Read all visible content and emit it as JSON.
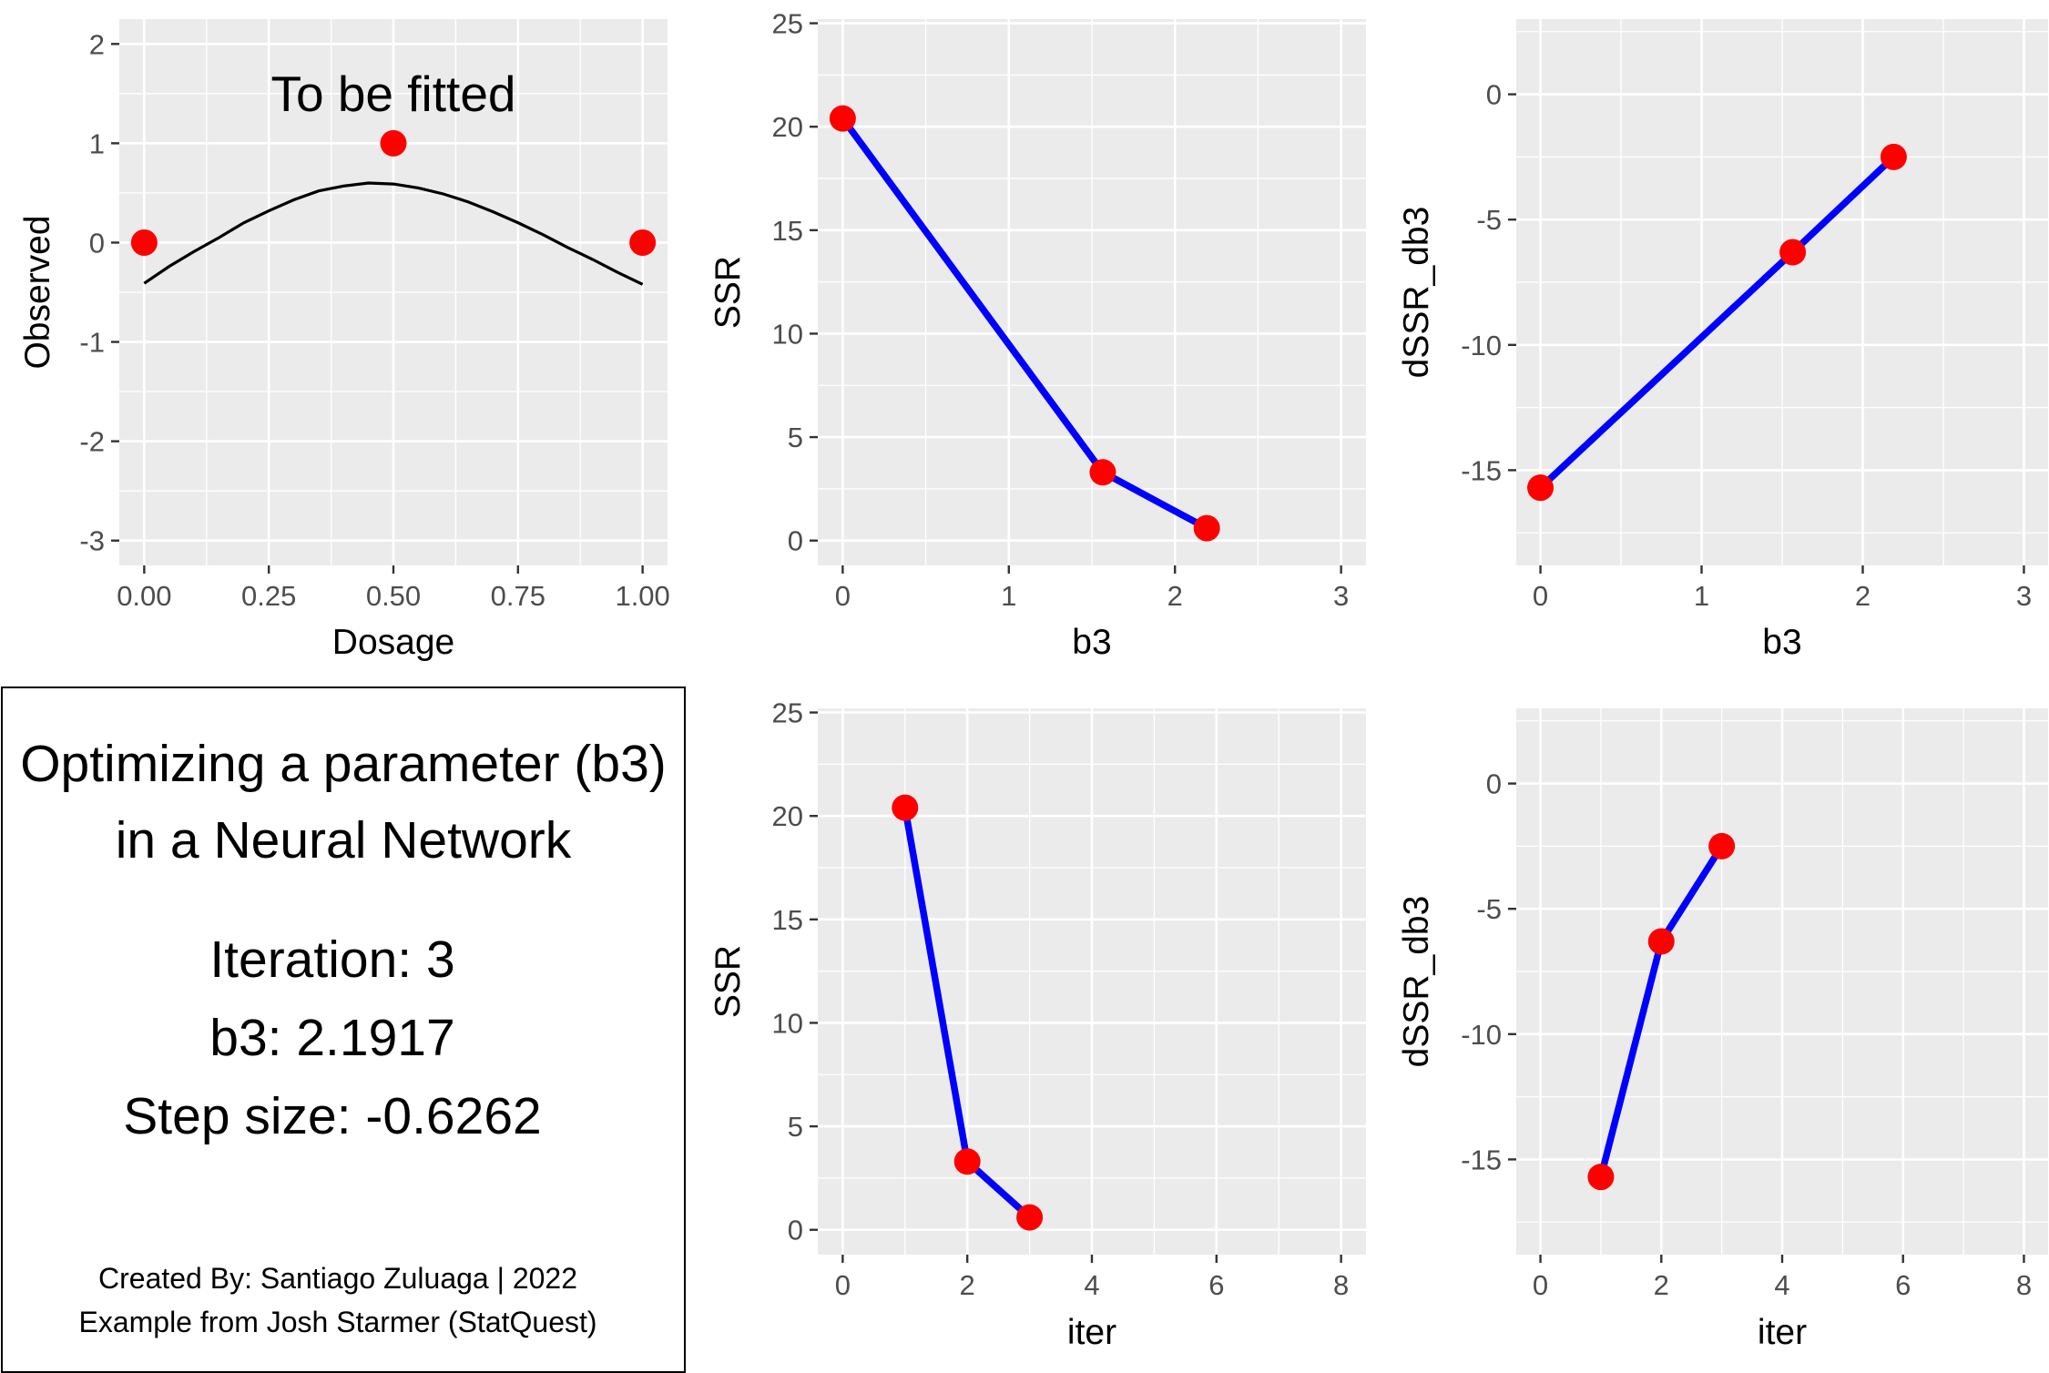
{
  "chart_data": [
    {
      "type": "scatter",
      "xlabel": "Dosage",
      "ylabel": "Observed",
      "xlim": [
        -0.05,
        1.05
      ],
      "ylim": [
        -3.25,
        2.25
      ],
      "xticks": [
        0.0,
        0.25,
        0.5,
        0.75,
        1.0
      ],
      "xtick_labels": [
        "0.00",
        "0.25",
        "0.50",
        "0.75",
        "1.00"
      ],
      "yticks": [
        -3,
        -2,
        -1,
        0,
        1,
        2
      ],
      "ytick_labels": [
        "-3",
        "-2",
        "-1",
        "0",
        "1",
        "2"
      ],
      "grid": true,
      "annotation": {
        "text": "To be fitted",
        "x": 0.5,
        "y": 1.5
      },
      "points": {
        "x": [
          0.0,
          0.5,
          1.0
        ],
        "y": [
          0,
          1,
          0
        ],
        "color": "#ff0000"
      },
      "curve": {
        "x": [
          0.0,
          0.05,
          0.1,
          0.15,
          0.2,
          0.25,
          0.3,
          0.35,
          0.4,
          0.45,
          0.5,
          0.55,
          0.6,
          0.65,
          0.7,
          0.75,
          0.8,
          0.85,
          0.9,
          0.95,
          1.0
        ],
        "y": [
          -0.41,
          -0.24,
          -0.09,
          0.05,
          0.2,
          0.32,
          0.43,
          0.52,
          0.57,
          0.6,
          0.59,
          0.55,
          0.49,
          0.41,
          0.31,
          0.2,
          0.08,
          -0.05,
          -0.17,
          -0.3,
          -0.42
        ],
        "color": "#000000"
      }
    },
    {
      "type": "line",
      "xlabel": "b3",
      "ylabel": "SSR",
      "xlim": [
        -0.15,
        3.15
      ],
      "ylim": [
        -1.2,
        25.2
      ],
      "xticks": [
        0,
        1,
        2,
        3
      ],
      "xtick_labels": [
        "0",
        "1",
        "2",
        "3"
      ],
      "yticks": [
        0,
        5,
        10,
        15,
        20,
        25
      ],
      "ytick_labels": [
        "0",
        "5",
        "10",
        "15",
        "20",
        "25"
      ],
      "grid": true,
      "x": [
        0,
        1.5655,
        2.1917
      ],
      "y": [
        20.4,
        3.3,
        0.6
      ],
      "line_color": "#0000ff",
      "point_color": "#ff0000"
    },
    {
      "type": "line",
      "xlabel": "b3",
      "ylabel": "dSSR_db3",
      "xlim": [
        -0.15,
        3.15
      ],
      "ylim": [
        -18.8,
        3.0
      ],
      "xticks": [
        0,
        1,
        2,
        3
      ],
      "xtick_labels": [
        "0",
        "1",
        "2",
        "3"
      ],
      "yticks": [
        -15,
        -10,
        -5,
        0
      ],
      "ytick_labels": [
        "-15",
        "-10",
        "-5",
        "0"
      ],
      "grid": true,
      "x": [
        0,
        1.5655,
        2.1917
      ],
      "y": [
        -15.7,
        -6.3,
        -2.5
      ],
      "line_color": "#0000ff",
      "point_color": "#ff0000"
    },
    {
      "type": "line",
      "xlabel": "iter",
      "ylabel": "SSR",
      "xlim": [
        -0.4,
        8.4
      ],
      "ylim": [
        -1.2,
        25.2
      ],
      "xticks": [
        0,
        2,
        4,
        6,
        8
      ],
      "xtick_labels": [
        "0",
        "2",
        "4",
        "6",
        "8"
      ],
      "yticks": [
        0,
        5,
        10,
        15,
        20,
        25
      ],
      "ytick_labels": [
        "0",
        "5",
        "10",
        "15",
        "20",
        "25"
      ],
      "grid": true,
      "x": [
        1,
        2,
        3
      ],
      "y": [
        20.4,
        3.3,
        0.6
      ],
      "line_color": "#0000ff",
      "point_color": "#ff0000"
    },
    {
      "type": "line",
      "xlabel": "iter",
      "ylabel": "dSSR_db3",
      "xlim": [
        -0.4,
        8.4
      ],
      "ylim": [
        -18.8,
        3.0
      ],
      "xticks": [
        0,
        2,
        4,
        6,
        8
      ],
      "xtick_labels": [
        "0",
        "2",
        "4",
        "6",
        "8"
      ],
      "yticks": [
        -15,
        -10,
        -5,
        0
      ],
      "ytick_labels": [
        "-15",
        "-10",
        "-5",
        "0"
      ],
      "grid": true,
      "x": [
        1,
        2,
        3
      ],
      "y": [
        -15.7,
        -6.3,
        -2.5
      ],
      "line_color": "#0000ff",
      "point_color": "#ff0000"
    }
  ],
  "info": {
    "title_line1": "Optimizing a parameter (b3)",
    "title_line2": "in a Neural Network",
    "iteration": "Iteration: 3",
    "b3": "b3: 2.1917",
    "step_size": "Step size: -0.6262",
    "credit_line1": "Created By: Santiago Zuluaga | 2022",
    "credit_line2": "Example from Josh Starmer (StatQuest)"
  }
}
